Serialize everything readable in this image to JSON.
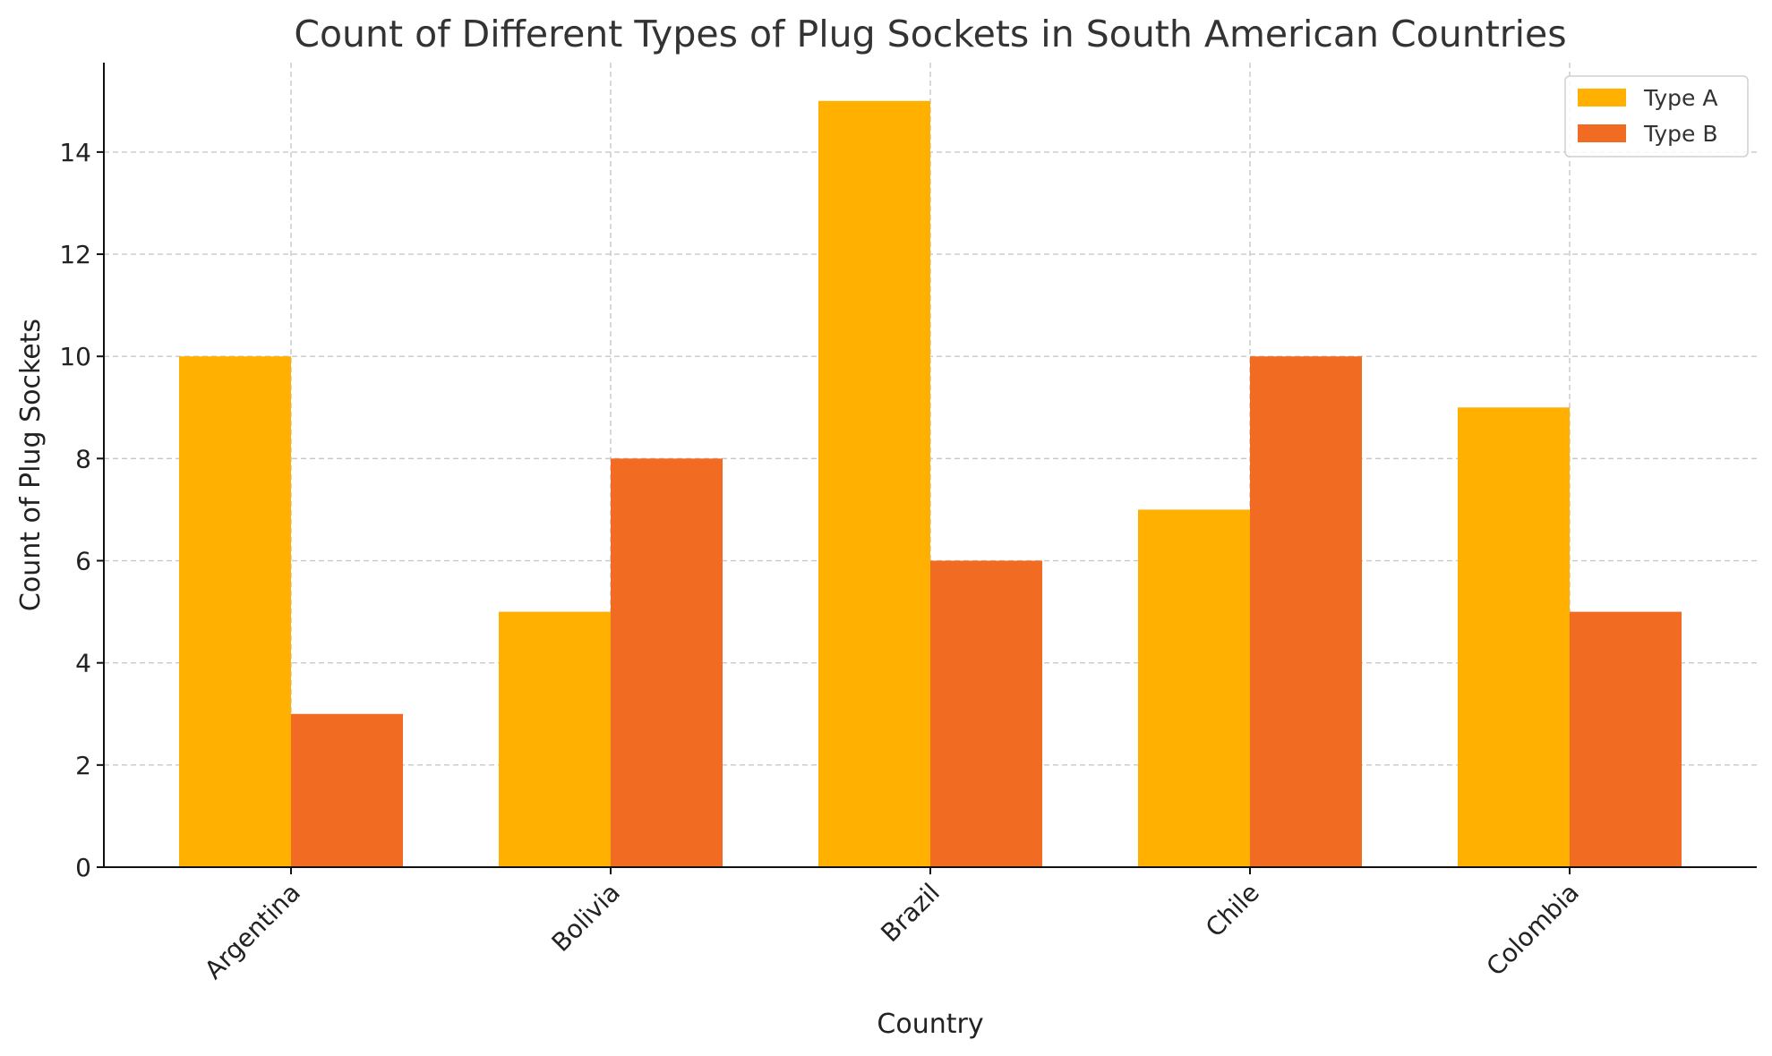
{
  "chart_data": {
    "type": "bar",
    "title": "Count of Different Types of Plug Sockets in South American Countries",
    "xlabel": "Country",
    "ylabel": "Count of Plug Sockets",
    "categories": [
      "Argentina",
      "Bolivia",
      "Brazil",
      "Chile",
      "Colombia"
    ],
    "series": [
      {
        "name": "Type A",
        "color": "#FFB000",
        "values": [
          10,
          5,
          15,
          7,
          9
        ]
      },
      {
        "name": "Type B",
        "color": "#F26B22",
        "values": [
          3,
          8,
          6,
          10,
          5
        ]
      }
    ],
    "ylim": [
      0,
      15.75
    ],
    "yticks": [
      0,
      2,
      4,
      6,
      8,
      10,
      12,
      14
    ],
    "grid": true,
    "legend_position": "top-right"
  }
}
